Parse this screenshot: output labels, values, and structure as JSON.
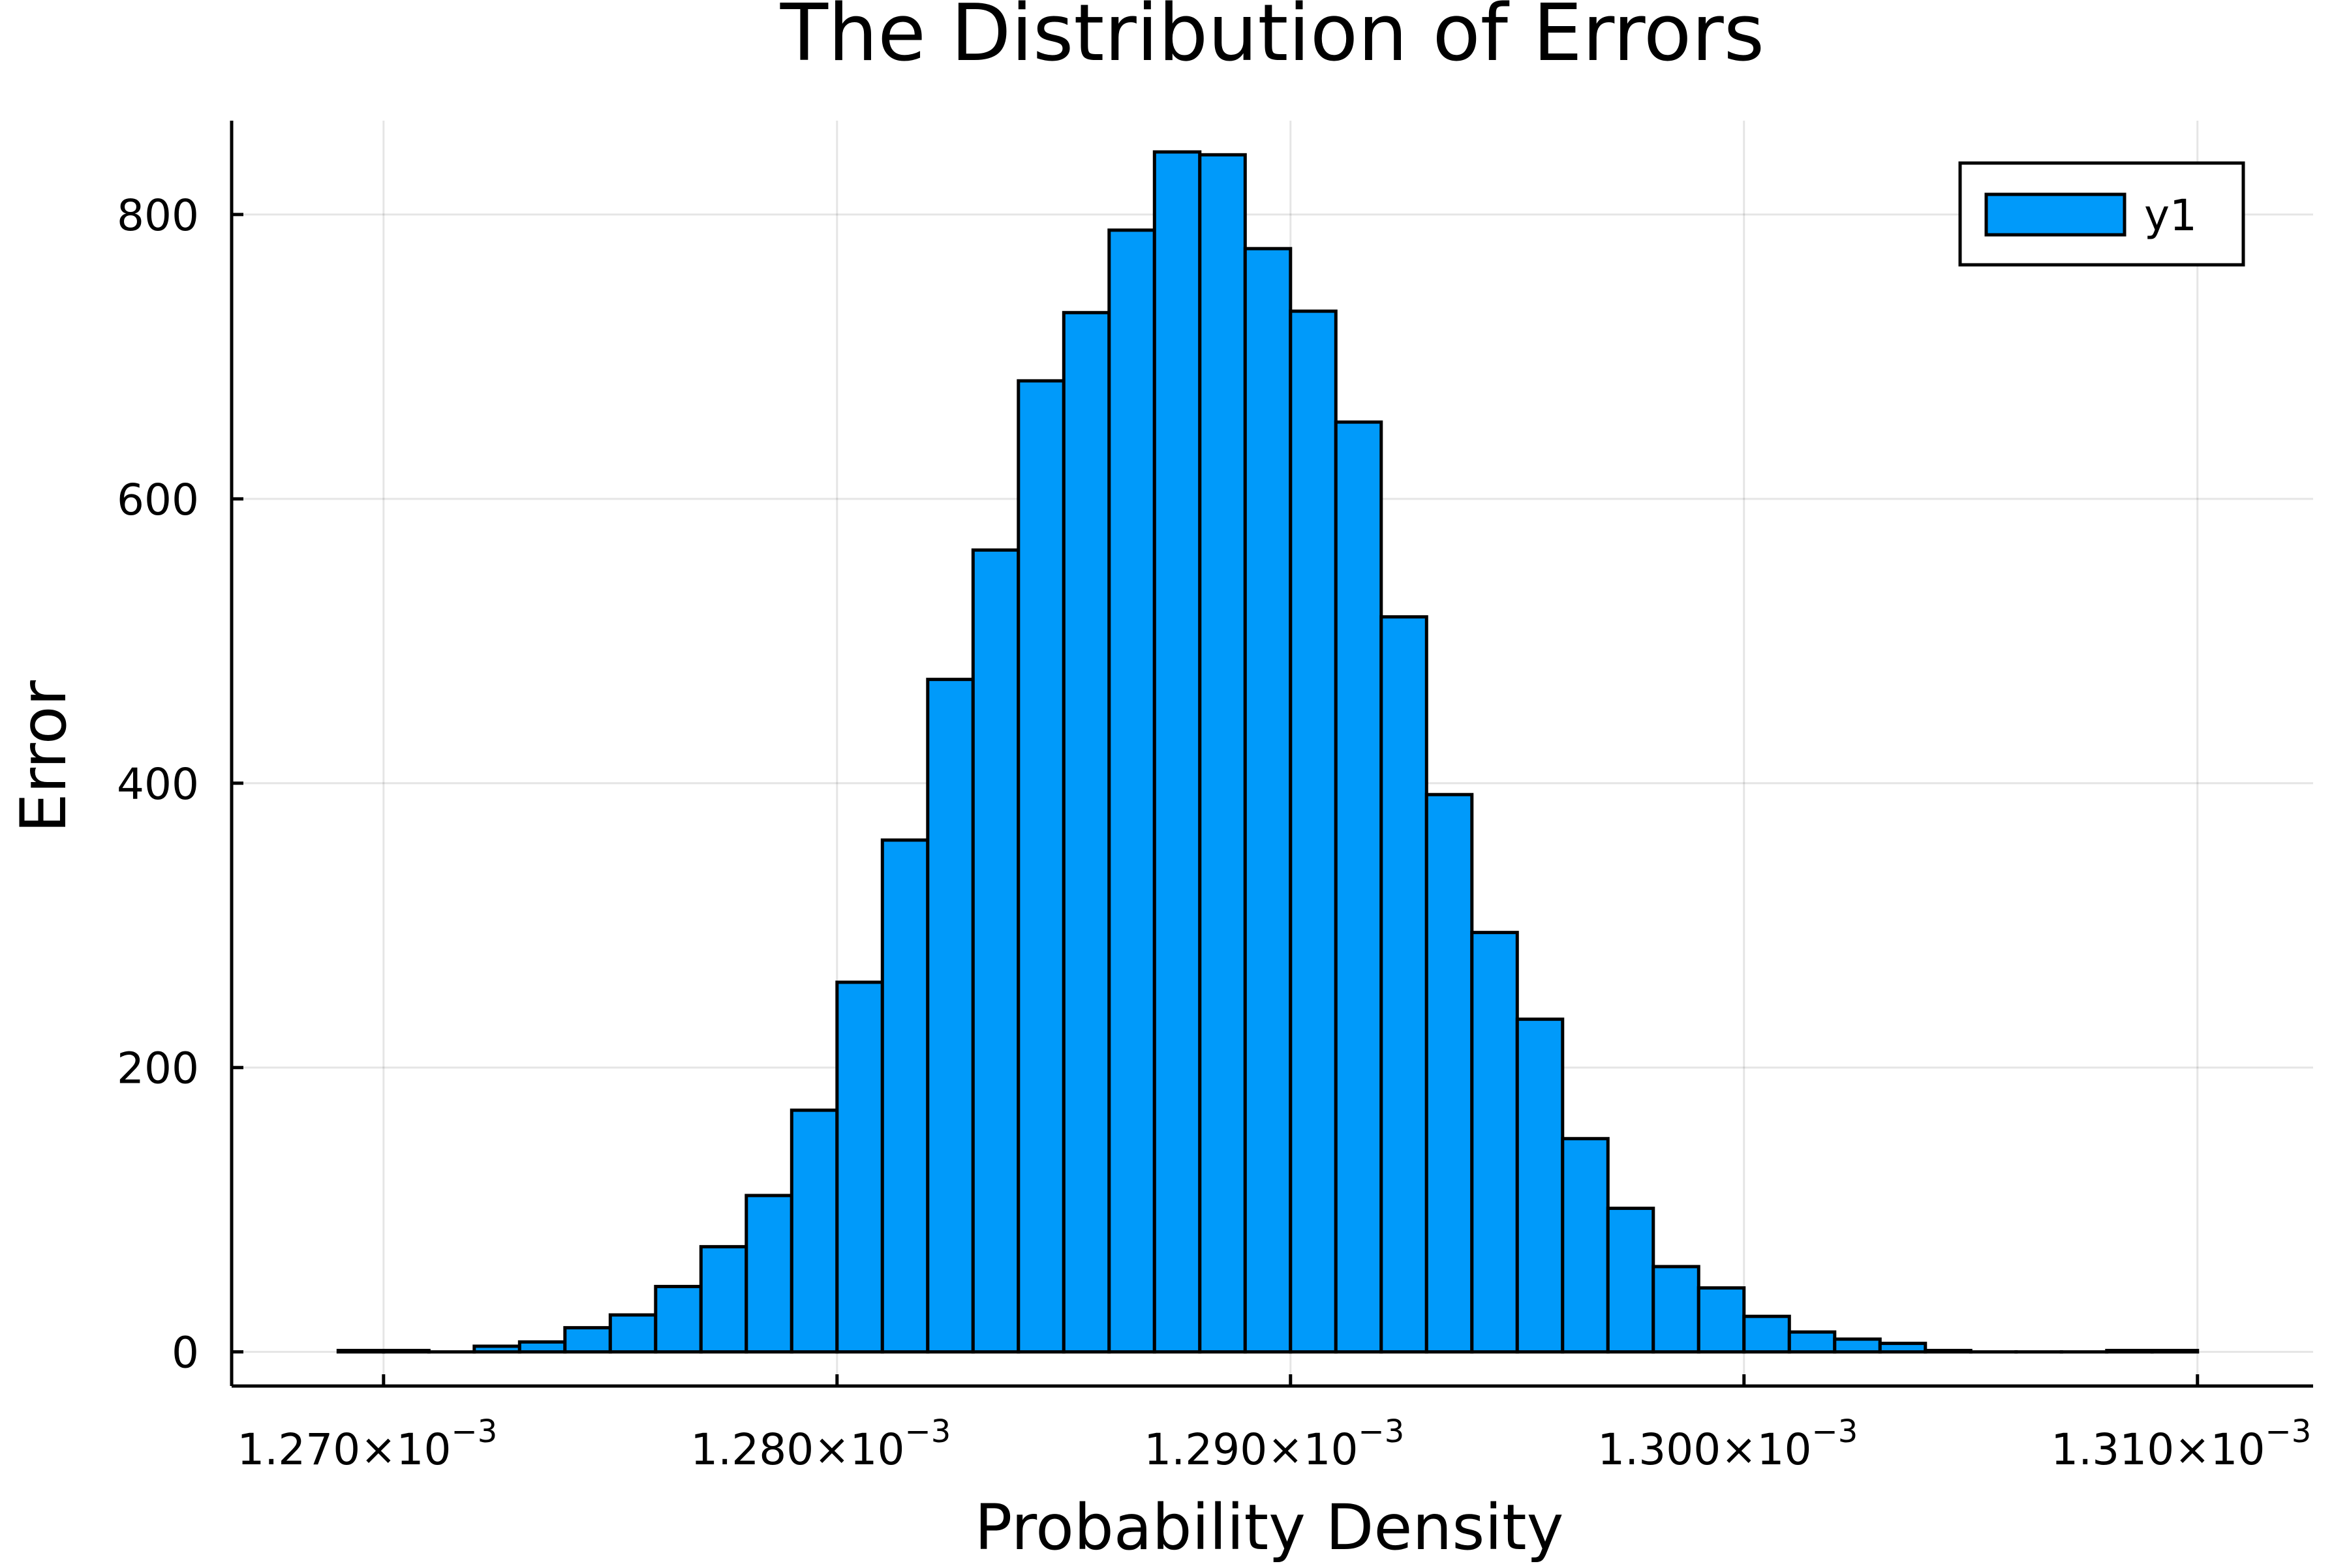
{
  "chart_data": {
    "type": "bar",
    "title": "The Distribution of Errors",
    "xlabel": "Probability Density",
    "ylabel": "Error",
    "xlim": [
      0.00126665,
      0.00131255
    ],
    "ylim": [
      -24,
      866
    ],
    "grid": true,
    "legend_position": "top-right",
    "x_ticks": [
      {
        "value": 0.00127,
        "mantissa": "1.270",
        "times": "×10",
        "exponent": "−3"
      },
      {
        "value": 0.00128,
        "mantissa": "1.280",
        "times": "×10",
        "exponent": "−3"
      },
      {
        "value": 0.00129,
        "mantissa": "1.290",
        "times": "×10",
        "exponent": "−3"
      },
      {
        "value": 0.0013,
        "mantissa": "1.300",
        "times": "×10",
        "exponent": "−3"
      },
      {
        "value": 0.00131,
        "mantissa": "1.310",
        "times": "×10",
        "exponent": "−3"
      }
    ],
    "y_ticks": [
      {
        "value": 0,
        "label": "0"
      },
      {
        "value": 200,
        "label": "200"
      },
      {
        "value": 400,
        "label": "400"
      },
      {
        "value": 600,
        "label": "600"
      },
      {
        "value": 800,
        "label": "800"
      }
    ],
    "bin_width": 1e-06,
    "bin_start": 0.001269,
    "series": [
      {
        "name": "y1",
        "color": "#009AFA",
        "edge_color": "#000000",
        "values": [
          1,
          1,
          0,
          4,
          7,
          17,
          26,
          46,
          74,
          110,
          170,
          260,
          360,
          473,
          564,
          683,
          731,
          789,
          844,
          842,
          776,
          732,
          654,
          517,
          392,
          295,
          234,
          150,
          101,
          60,
          45,
          25,
          14,
          9,
          6,
          1,
          0,
          0,
          0,
          1,
          1
        ]
      }
    ]
  }
}
